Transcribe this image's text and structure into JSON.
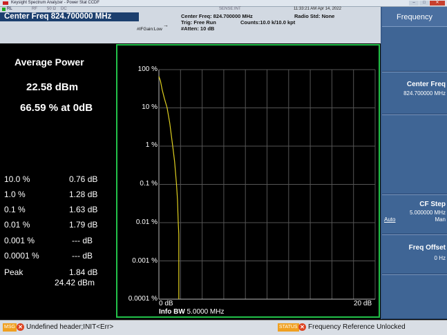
{
  "window": {
    "title": "Keysight Spectrum Analyzer - Power Stat CCDF"
  },
  "header": {
    "rl": "RL",
    "rf": "RF",
    "impedance": "50 Ω",
    "coupling": "DC",
    "sense": "SENSE:INT",
    "timestamp": "11:33:21 AM Apr 14, 2022",
    "center_freq_banner": "Center Freq 824.700000 MHz",
    "center_freq_info": "Center Freq: 824.700000 MHz",
    "trig": "Trig: Free Run",
    "counts": "Counts:10.0 k/10.0 kpt",
    "radio_std": "Radio Std: None",
    "ifgain": "#IFGain:Low",
    "atten": "#Atten: 10 dB"
  },
  "left_panel": {
    "title": "Average Power",
    "avg_power": "22.58 dBm",
    "percent_at_0db": "66.59 % at 0dB",
    "rows": [
      {
        "pct": "10.0 %",
        "db": "0.76 dB"
      },
      {
        "pct": "1.0 %",
        "db": "1.28 dB"
      },
      {
        "pct": "0.1 %",
        "db": "1.63 dB"
      },
      {
        "pct": "0.01 %",
        "db": "1.79 dB"
      },
      {
        "pct": "0.001 %",
        "db": "--- dB"
      },
      {
        "pct": "0.0001 %",
        "db": "--- dB"
      }
    ],
    "peak_label": "Peak",
    "peak_db": "1.84 dB",
    "peak_dbm": "24.42 dBm"
  },
  "graph": {
    "y_labels": [
      "100 %",
      "10 %",
      "1 %",
      "0.1 %",
      "0.01 %",
      "0.001 %",
      "0.0001 %"
    ],
    "x_start": "0 dB",
    "x_end": "20 dB",
    "info_bw_label": "Info BW",
    "info_bw_value": "5.0000 MHz",
    "trace_color": "#e0d020",
    "grid_color": "#555555",
    "border_color": "#22c24a"
  },
  "chart_data": {
    "type": "line",
    "scale": "log-y",
    "x": [
      0,
      0.15,
      0.3,
      0.5,
      0.76,
      1.0,
      1.28,
      1.45,
      1.63,
      1.72,
      1.79,
      1.84,
      1.84
    ],
    "y": [
      66.59,
      50,
      30,
      18,
      10,
      4,
      1,
      0.4,
      0.1,
      0.04,
      0.01,
      0.005,
      0.0001
    ],
    "xlim": [
      0,
      20
    ],
    "ylim": [
      0.0001,
      100
    ],
    "xlabel": "",
    "ylabel": ""
  },
  "softkeys": {
    "menu_title": "Frequency",
    "items": [
      {
        "label": "Center Freq",
        "value": "824.700000 MHz"
      },
      {
        "label": "CF Step",
        "value": "5.000000 MHz",
        "auto": "Auto",
        "man": "Man"
      },
      {
        "label": "Freq Offset",
        "value": "0 Hz"
      }
    ]
  },
  "status": {
    "msg_tag": "MSG",
    "msg_text": "Undefined header;INIT<Err>",
    "status_tag": "STATUS",
    "status_text": "Frequency Reference Unlocked"
  },
  "colors": {
    "header_bg": "#d2d9e2",
    "banner_bg": "#1c3f6e",
    "softkey_bg": "#3f6595",
    "tag_bg": "#f0a020"
  }
}
